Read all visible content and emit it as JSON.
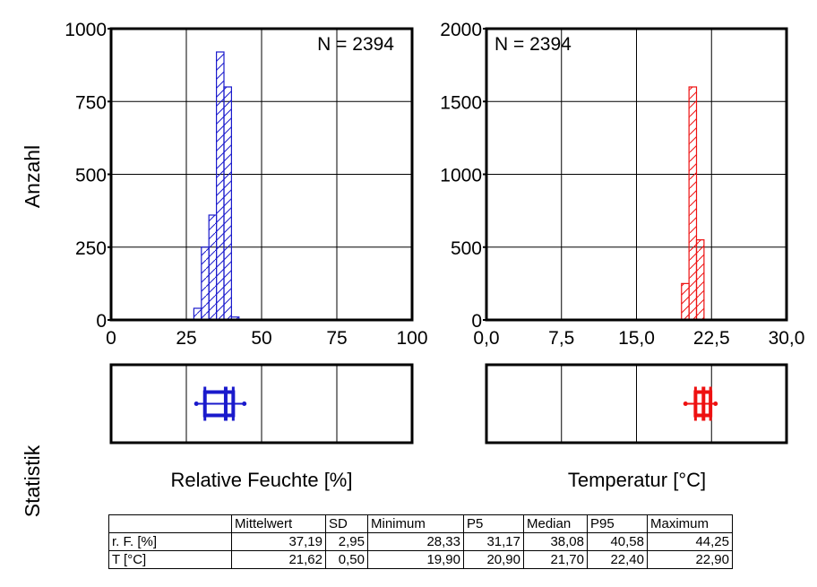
{
  "labels": {
    "y_axis": "Anzahl",
    "statistics": "Statistik",
    "humidity_x": "Relative Feuchte [%]",
    "temperature_x": "Temperatur [°C]"
  },
  "colors": {
    "humidity": "#1a1acc",
    "temperature": "#ee1111",
    "axis": "#000000"
  },
  "chart_data": [
    {
      "type": "bar",
      "annotation": "N = 2394",
      "xlabel": "Relative Feuchte [%]",
      "ylabel": "Anzahl",
      "xlim": [
        0,
        100
      ],
      "ylim": [
        0,
        1000
      ],
      "xticks": [
        "0",
        "25",
        "50",
        "75",
        "100"
      ],
      "yticks": [
        "0",
        "250",
        "500",
        "750",
        "1000"
      ],
      "grid": true,
      "hatch": "diagonal",
      "bin_width": 2.5,
      "bins": [
        {
          "x": 27.5,
          "value": 40
        },
        {
          "x": 30,
          "value": 250
        },
        {
          "x": 32.5,
          "value": 360
        },
        {
          "x": 35,
          "value": 920
        },
        {
          "x": 37.5,
          "value": 800
        },
        {
          "x": 40,
          "value": 10
        }
      ],
      "boxplot": {
        "min": 28.33,
        "p5": 31.17,
        "median": 38.08,
        "p95": 40.58,
        "max": 44.25
      }
    },
    {
      "type": "bar",
      "annotation": "N = 2394",
      "xlabel": "Temperatur [°C]",
      "ylabel": "Anzahl",
      "xlim": [
        0,
        30
      ],
      "ylim": [
        0,
        2000
      ],
      "xticks": [
        "0,0",
        "7,5",
        "15,0",
        "22,5",
        "30,0"
      ],
      "yticks": [
        "0",
        "500",
        "1000",
        "1500",
        "2000"
      ],
      "grid": true,
      "hatch": "diagonal",
      "bin_width": 0.75,
      "bins": [
        {
          "x": 19.5,
          "value": 250
        },
        {
          "x": 20.25,
          "value": 1600
        },
        {
          "x": 21.0,
          "value": 550
        }
      ],
      "boxplot": {
        "min": 19.9,
        "p5": 20.9,
        "median": 21.7,
        "p95": 22.4,
        "max": 22.9
      }
    }
  ],
  "table": {
    "headers": [
      "",
      "Mittelwert",
      "SD",
      "Minimum",
      "P5",
      "Median",
      "P95",
      "Maximum"
    ],
    "rows": [
      {
        "label": "r. F. [%]",
        "values": [
          "37,19",
          "2,95",
          "28,33",
          "31,17",
          "38,08",
          "40,58",
          "44,25"
        ]
      },
      {
        "label": "T [°C]",
        "values": [
          "21,62",
          "0,50",
          "19,90",
          "20,90",
          "21,70",
          "22,40",
          "22,90"
        ]
      }
    ]
  }
}
